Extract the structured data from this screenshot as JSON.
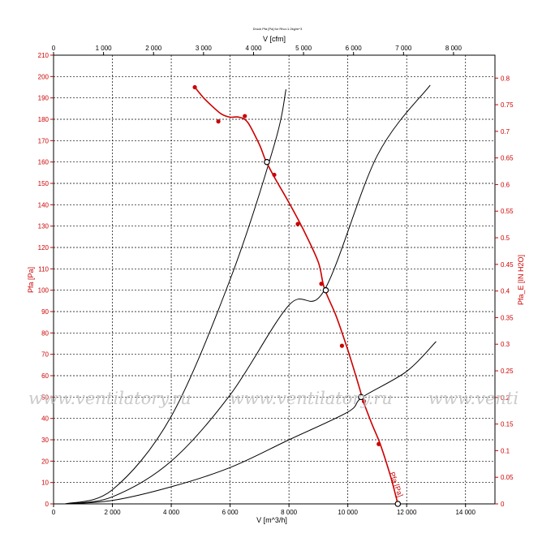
{
  "chart_data": {
    "type": "line",
    "title": "Druck Pfa [Pa] for Rho=1.2kg/m^3",
    "xlabel_bottom": "V [m^3/h]",
    "xlabel_top": "V [cfm]",
    "ylabel_left": "Pfa [Pa]",
    "ylabel_right": "Pfa_E [IN H2O]",
    "xlim": [
      0,
      15000
    ],
    "ylim": [
      0,
      210
    ],
    "x_ticks": [
      "0",
      "2 000",
      "4 000",
      "6 000",
      "8 000",
      "10 000",
      "12 000",
      "14 000"
    ],
    "x_top_ticks": [
      "0",
      "1 000",
      "2 000",
      "3 000",
      "4 000",
      "5 000",
      "6 000",
      "7 000",
      "8 000"
    ],
    "y_ticks": [
      "0",
      "10",
      "20",
      "30",
      "40",
      "50",
      "60",
      "70",
      "80",
      "90",
      "100",
      "110",
      "120",
      "130",
      "140",
      "150",
      "160",
      "170",
      "180",
      "190",
      "200",
      "210"
    ],
    "y_right_ticks": [
      "0",
      "0.05",
      "0.1",
      "0.15",
      "0.2",
      "0.25",
      "0.3",
      "0.35",
      "0.4",
      "0.45",
      "0.5",
      "0.55",
      "0.6",
      "0.65",
      "0.7",
      "0.75",
      "0.8"
    ],
    "fan_curve_label": "Pfa [Pa]",
    "series": [
      {
        "kind": "fan-curve",
        "color": "#cc0000",
        "curve": [
          [
            4800,
            195
          ],
          [
            5100,
            190
          ],
          [
            5400,
            186
          ],
          [
            5700,
            182.5
          ],
          [
            6000,
            181
          ],
          [
            6300,
            181
          ],
          [
            6600,
            178.5
          ],
          [
            7000,
            168
          ],
          [
            7200,
            161
          ],
          [
            7500,
            153
          ],
          [
            8000,
            141
          ],
          [
            8500,
            128
          ],
          [
            9000,
            113
          ],
          [
            9200,
            101
          ],
          [
            9600,
            88
          ],
          [
            10000,
            72
          ],
          [
            10400,
            54
          ],
          [
            10500,
            49
          ],
          [
            10800,
            38
          ],
          [
            11100,
            28
          ],
          [
            11450,
            13
          ],
          [
            11700,
            0
          ]
        ],
        "markers": [
          [
            4800,
            195
          ],
          [
            5600,
            179
          ],
          [
            6500,
            181.5
          ],
          [
            7500,
            154
          ],
          [
            8300,
            131
          ],
          [
            9100,
            103
          ],
          [
            9800,
            74
          ],
          [
            10550,
            48
          ],
          [
            11050,
            28
          ],
          [
            11700,
            0
          ]
        ]
      },
      {
        "kind": "system-curve",
        "color": "#000000",
        "points": [
          [
            400,
            0
          ],
          [
            2000,
            6.6
          ],
          [
            4000,
            41
          ],
          [
            6000,
            105
          ],
          [
            7500,
            168
          ],
          [
            7900,
            194
          ]
        ]
      },
      {
        "kind": "system-curve",
        "color": "#000000",
        "points": [
          [
            400,
            0
          ],
          [
            2000,
            3.3
          ],
          [
            4000,
            20
          ],
          [
            6000,
            51
          ],
          [
            8000,
            93
          ],
          [
            9200,
            100
          ],
          [
            11000,
            163
          ],
          [
            12800,
            196
          ]
        ]
      },
      {
        "kind": "system-curve",
        "color": "#000000",
        "points": [
          [
            400,
            0
          ],
          [
            2000,
            1.6
          ],
          [
            4000,
            8
          ],
          [
            6000,
            17
          ],
          [
            8000,
            30
          ],
          [
            10000,
            43
          ],
          [
            10500,
            50
          ],
          [
            12000,
            62
          ],
          [
            13000,
            76
          ]
        ]
      }
    ],
    "operating_points": [
      [
        7250,
        160
      ],
      [
        9250,
        100
      ],
      [
        10450,
        50
      ],
      [
        11700,
        0
      ]
    ],
    "grid": true,
    "legend": "none"
  },
  "watermarks": [
    "www.ventilatory.ru",
    "www.ventilatory.ru",
    "www.venti"
  ]
}
